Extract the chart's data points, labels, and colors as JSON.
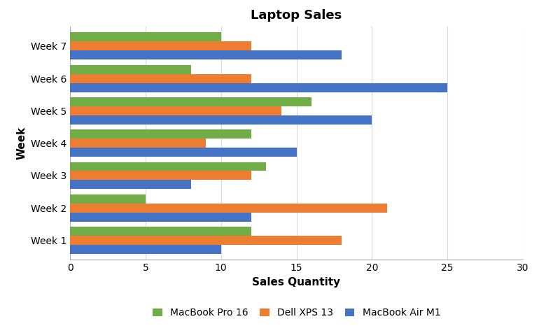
{
  "title": "Laptop Sales",
  "xlabel": "Sales Quantity",
  "ylabel": "Week",
  "categories": [
    "Week 1",
    "Week 2",
    "Week 3",
    "Week 4",
    "Week 5",
    "Week 6",
    "Week 7"
  ],
  "series": [
    {
      "name": "MacBook Pro 16",
      "color": "#70ad47",
      "values": [
        12,
        5,
        13,
        12,
        16,
        8,
        10
      ]
    },
    {
      "name": "Dell XPS 13",
      "color": "#ed7d31",
      "values": [
        18,
        21,
        12,
        9,
        14,
        12,
        12
      ]
    },
    {
      "name": "MacBook Air M1",
      "color": "#4472c4",
      "values": [
        10,
        12,
        8,
        15,
        20,
        25,
        18
      ]
    }
  ],
  "xlim": [
    0,
    30
  ],
  "xticks": [
    0,
    5,
    10,
    15,
    20,
    25,
    30
  ],
  "background_color": "#ffffff",
  "grid_color": "#d9d9d9",
  "title_fontsize": 13,
  "axis_label_fontsize": 11,
  "tick_fontsize": 10,
  "legend_fontsize": 10,
  "bar_height": 0.28
}
